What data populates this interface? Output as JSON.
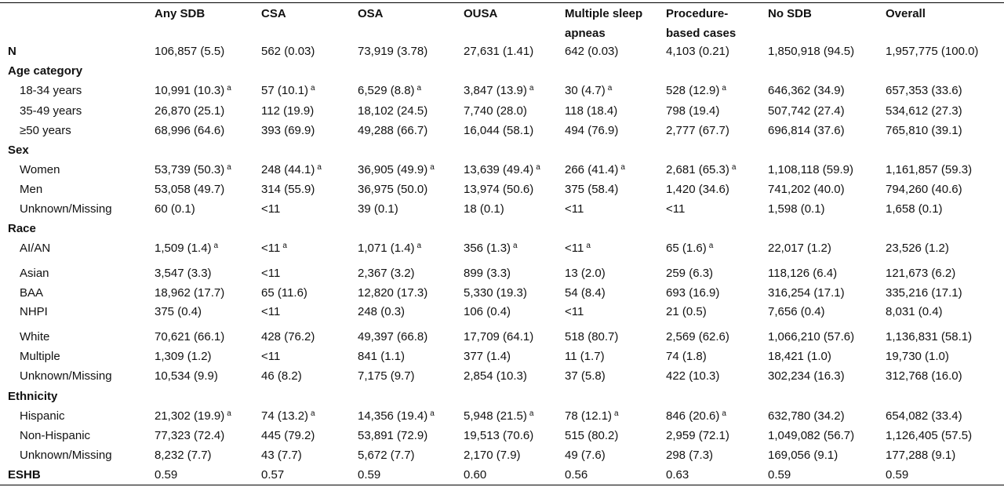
{
  "columns": [
    "Any SDB",
    "CSA",
    "OSA",
    "OUSA",
    "Multiple sleep",
    "Procedure-",
    "No SDB",
    "Overall"
  ],
  "columns_line2": [
    "",
    "",
    "",
    "",
    "apneas",
    "based cases",
    "",
    ""
  ],
  "rows": [
    {
      "label": "N",
      "bold": true,
      "cells": [
        "106,857 (5.5)",
        "562 (0.03)",
        "73,919 (3.78)",
        "27,631 (1.41)",
        "642 (0.03)",
        "4,103 (0.21)",
        "1,850,918 (94.5)",
        "1,957,775 (100.0)"
      ]
    },
    {
      "label": "Age category",
      "bold": true,
      "cells": []
    },
    {
      "label": "18-34 years",
      "indent": true,
      "sup": "a",
      "cells": [
        "10,991 (10.3)",
        "57 (10.1)",
        "6,529 (8.8)",
        "3,847 (13.9)",
        "30 (4.7)",
        "528 (12.9)",
        "646,362 (34.9)",
        "657,353 (33.6)"
      ]
    },
    {
      "label": "35-49 years",
      "indent": true,
      "cells": [
        "26,870 (25.1)",
        "112 (19.9)",
        "18,102 (24.5)",
        "7,740 (28.0)",
        "118 (18.4)",
        "798 (19.4)",
        "507,742 (27.4)",
        "534,612 (27.3)"
      ]
    },
    {
      "label": "≥50 years",
      "indent": true,
      "cells": [
        "68,996 (64.6)",
        "393 (69.9)",
        "49,288 (66.7)",
        "16,044 (58.1)",
        "494 (76.9)",
        "2,777 (67.7)",
        "696,814 (37.6)",
        "765,810 (39.1)"
      ]
    },
    {
      "label": "Sex",
      "bold": true,
      "cells": []
    },
    {
      "label": "Women",
      "indent": true,
      "sup": "a",
      "cells": [
        "53,739 (50.3)",
        "248 (44.1)",
        "36,905 (49.9)",
        "13,639 (49.4)",
        "266 (41.4)",
        "2,681 (65.3)",
        "1,108,118 (59.9)",
        "1,161,857 (59.3)"
      ]
    },
    {
      "label": "Men",
      "indent": true,
      "cells": [
        "53,058 (49.7)",
        "314 (55.9)",
        "36,975 (50.0)",
        "13,974 (50.6)",
        "375 (58.4)",
        "1,420 (34.6)",
        "741,202 (40.0)",
        "794,260 (40.6)"
      ]
    },
    {
      "label": "Unknown/Missing",
      "indent": true,
      "cells": [
        "60 (0.1)",
        "<11",
        "39 (0.1)",
        "18 (0.1)",
        "<11",
        "<11",
        "1,598 (0.1)",
        "1,658 (0.1)"
      ]
    },
    {
      "label": "Race",
      "bold": true,
      "cells": []
    },
    {
      "label": "AI/AN",
      "indent": true,
      "sup": "a",
      "cells": [
        "1,509 (1.4)",
        "<11",
        "1,071 (1.4)",
        "356 (1.3)",
        "<11",
        "65 (1.6)",
        "22,017 (1.2)",
        "23,526 (1.2)"
      ]
    },
    {
      "label": "Asian",
      "indent": true,
      "cells": [
        "3,547 (3.3)",
        "<11",
        "2,367 (3.2)",
        "899 (3.3)",
        "13 (2.0)",
        "259 (6.3)",
        "118,126 (6.4)",
        "121,673 (6.2)"
      ]
    },
    {
      "label": "BAA",
      "indent": true,
      "cells": [
        "18,962 (17.7)",
        "65 (11.6)",
        "12,820 (17.3)",
        "5,330 (19.3)",
        "54 (8.4)",
        "693 (16.9)",
        "316,254 (17.1)",
        "335,216 (17.1)"
      ]
    },
    {
      "label": "NHPI",
      "indent": true,
      "cells": [
        "375 (0.4)",
        "<11",
        "248 (0.3)",
        "106 (0.4)",
        "<11",
        "21 (0.5)",
        "7,656 (0.4)",
        "8,031 (0.4)"
      ]
    },
    {
      "label": "White",
      "indent": true,
      "cells": [
        "70,621 (66.1)",
        "428 (76.2)",
        "49,397 (66.8)",
        "17,709 (64.1)",
        "518 (80.7)",
        "2,569 (62.6)",
        "1,066,210 (57.6)",
        "1,136,831 (58.1)"
      ]
    },
    {
      "label": "Multiple",
      "indent": true,
      "cells": [
        "1,309 (1.2)",
        "<11",
        "841 (1.1)",
        "377 (1.4)",
        "11 (1.7)",
        "74 (1.8)",
        "18,421 (1.0)",
        "19,730 (1.0)"
      ]
    },
    {
      "label": "Unknown/Missing",
      "indent": true,
      "cells": [
        "10,534 (9.9)",
        "46 (8.2)",
        "7,175 (9.7)",
        "2,854 (10.3)",
        "37 (5.8)",
        "422 (10.3)",
        "302,234 (16.3)",
        "312,768 (16.0)"
      ]
    },
    {
      "label": "Ethnicity",
      "bold": true,
      "cells": []
    },
    {
      "label": "Hispanic",
      "indent": true,
      "sup": "a",
      "cells": [
        "21,302 (19.9)",
        "74 (13.2)",
        "14,356 (19.4)",
        "5,948 (21.5)",
        "78 (12.1)",
        "846 (20.6)",
        "632,780 (34.2)",
        "654,082 (33.4)"
      ]
    },
    {
      "label": "Non-Hispanic",
      "indent": true,
      "cells": [
        "77,323 (72.4)",
        "445 (79.2)",
        "53,891 (72.9)",
        "19,513 (70.6)",
        "515 (80.2)",
        "2,959 (72.1)",
        "1,049,082 (56.7)",
        "1,126,405 (57.5)"
      ]
    },
    {
      "label": "Unknown/Missing",
      "indent": true,
      "cells": [
        "8,232 (7.7)",
        "43 (7.7)",
        "5,672 (7.7)",
        "2,170 (7.9)",
        "49 (7.6)",
        "298 (7.3)",
        "169,056 (9.1)",
        "177,288 (9.1)"
      ]
    },
    {
      "label": "ESHB",
      "bold": true,
      "cells": [
        "0.59",
        "0.57",
        "0.59",
        "0.60",
        "0.56",
        "0.63",
        "0.59",
        "0.59"
      ]
    }
  ]
}
